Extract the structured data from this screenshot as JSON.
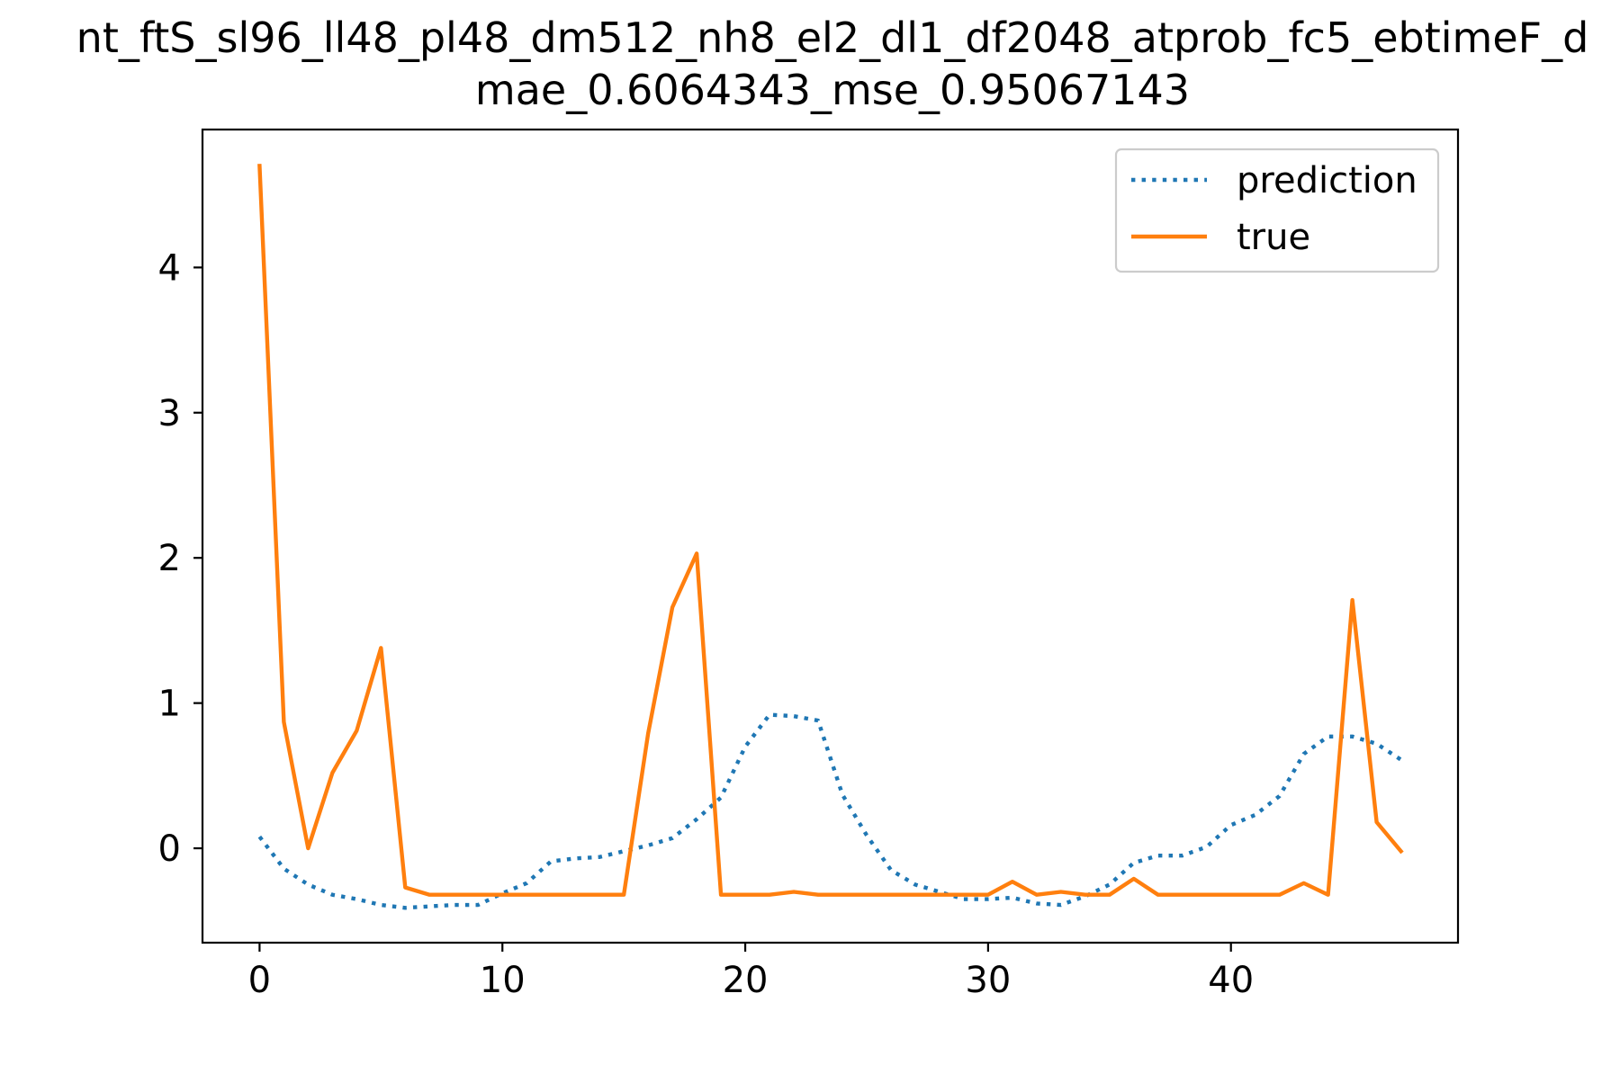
{
  "chart_data": {
    "type": "line",
    "title_line1": "nt_ftS_sl96_ll48_pl48_dm512_nh8_el2_dl1_df2048_atprob_fc5_ebtimeF_d",
    "title_line2": "mae_0.6064343_mse_0.95067143",
    "xlabel": "",
    "ylabel": "",
    "xlim": [
      -2.35,
      49.35
    ],
    "ylim": [
      -0.65,
      4.95
    ],
    "xticks": [
      0,
      10,
      20,
      30,
      40
    ],
    "xtick_labels": [
      "0",
      "10",
      "20",
      "30",
      "40"
    ],
    "yticks": [
      0,
      1,
      2,
      3,
      4
    ],
    "ytick_labels": [
      "0",
      "1",
      "2",
      "3",
      "4"
    ],
    "grid": false,
    "legend_position": "top-right",
    "x": [
      0,
      1,
      2,
      3,
      4,
      5,
      6,
      7,
      8,
      9,
      10,
      11,
      12,
      13,
      14,
      15,
      16,
      17,
      18,
      19,
      20,
      21,
      22,
      23,
      24,
      25,
      26,
      27,
      28,
      29,
      30,
      31,
      32,
      33,
      34,
      35,
      36,
      37,
      38,
      39,
      40,
      41,
      42,
      43,
      44,
      45,
      46,
      47
    ],
    "series": [
      {
        "name": "prediction",
        "color": "#1f77b4",
        "line_style": "dotted",
        "values": [
          0.08,
          -0.14,
          -0.25,
          -0.32,
          -0.35,
          -0.39,
          -0.41,
          -0.4,
          -0.39,
          -0.39,
          -0.31,
          -0.24,
          -0.09,
          -0.07,
          -0.06,
          -0.02,
          0.02,
          0.07,
          0.2,
          0.35,
          0.7,
          0.92,
          0.91,
          0.88,
          0.37,
          0.09,
          -0.15,
          -0.25,
          -0.3,
          -0.35,
          -0.35,
          -0.34,
          -0.38,
          -0.39,
          -0.33,
          -0.25,
          -0.1,
          -0.05,
          -0.05,
          0.01,
          0.16,
          0.23,
          0.36,
          0.65,
          0.77,
          0.77,
          0.72,
          0.61
        ]
      },
      {
        "name": "true",
        "color": "#ff7f0e",
        "line_style": "solid",
        "values": [
          4.7,
          0.87,
          0.0,
          0.52,
          0.81,
          1.38,
          -0.27,
          -0.32,
          -0.32,
          -0.32,
          -0.32,
          -0.32,
          -0.32,
          -0.32,
          -0.32,
          -0.32,
          0.79,
          1.66,
          2.03,
          -0.32,
          -0.32,
          -0.32,
          -0.3,
          -0.32,
          -0.32,
          -0.32,
          -0.32,
          -0.32,
          -0.32,
          -0.32,
          -0.32,
          -0.23,
          -0.32,
          -0.3,
          -0.32,
          -0.32,
          -0.21,
          -0.32,
          -0.32,
          -0.32,
          -0.32,
          -0.32,
          -0.32,
          -0.24,
          -0.32,
          1.71,
          0.18,
          -0.02
        ]
      }
    ]
  }
}
